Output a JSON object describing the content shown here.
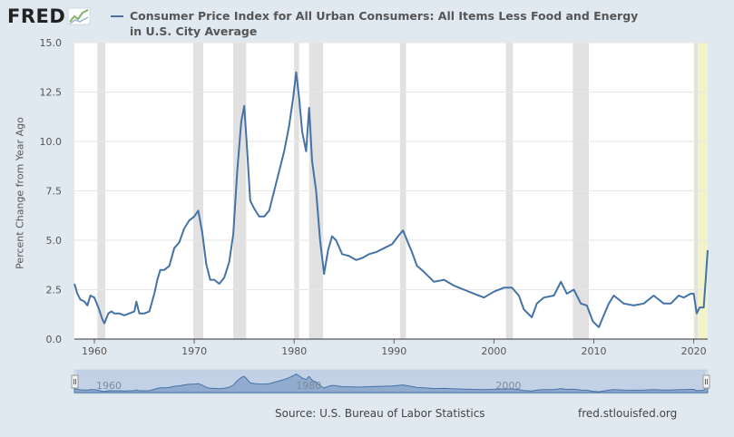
{
  "logo": {
    "text": "FRED",
    "icon": "fred-trend-icon"
  },
  "chart_data": {
    "type": "line",
    "title_line1": "Consumer Price Index for All Urban Consumers: All Items Less Food and Energy",
    "title_line2": "in U.S. City Average",
    "ylabel": "Percent Change from Year Ago",
    "xlabel": "",
    "ylim": [
      0,
      15
    ],
    "xlim": [
      1958,
      2021.4
    ],
    "yticks": [
      "0.0",
      "2.5",
      "5.0",
      "7.5",
      "10.0",
      "12.5",
      "15.0"
    ],
    "xticks": [
      "1960",
      "1970",
      "1980",
      "1990",
      "2000",
      "2010",
      "2020"
    ],
    "navigator_labels": [
      "1960",
      "1980",
      "2000"
    ],
    "grid": "horizontal",
    "line_color": "#4572a7",
    "recession_color": "#e1e1e1",
    "highlight_color": "#f2f3c8",
    "recessions": [
      [
        1960.3,
        1961.1
      ],
      [
        1969.9,
        1970.9
      ],
      [
        1973.9,
        1975.2
      ],
      [
        1980.0,
        1980.5
      ],
      [
        1981.5,
        1982.9
      ],
      [
        1990.6,
        1991.2
      ],
      [
        2001.2,
        2001.9
      ],
      [
        2007.9,
        2009.5
      ],
      [
        2020.1,
        2020.4
      ]
    ],
    "highlight": [
      2020.0,
      2021.4
    ],
    "series": [
      {
        "name": "Consumer Price Index for All Urban Consumers: All Items Less Food and Energy in U.S. City Average",
        "x": [
          1958.0,
          1958.3,
          1958.6,
          1959.0,
          1959.3,
          1959.6,
          1960.0,
          1960.4,
          1960.8,
          1961.0,
          1961.4,
          1961.7,
          1962.0,
          1962.5,
          1963.0,
          1963.5,
          1964.0,
          1964.2,
          1964.5,
          1965.0,
          1965.5,
          1966.0,
          1966.3,
          1966.6,
          1967.0,
          1967.5,
          1968.0,
          1968.5,
          1969.0,
          1969.5,
          1970.0,
          1970.4,
          1970.8,
          1971.2,
          1971.6,
          1972.0,
          1972.5,
          1973.0,
          1973.5,
          1973.9,
          1974.3,
          1974.7,
          1975.0,
          1975.3,
          1975.6,
          1976.0,
          1976.5,
          1977.0,
          1977.5,
          1978.0,
          1978.5,
          1979.0,
          1979.5,
          1979.9,
          1980.2,
          1980.5,
          1980.8,
          1981.2,
          1981.5,
          1981.8,
          1982.2,
          1982.6,
          1983.0,
          1983.4,
          1983.8,
          1984.2,
          1984.8,
          1985.5,
          1986.2,
          1986.8,
          1987.5,
          1988.2,
          1989.0,
          1989.8,
          1990.4,
          1990.9,
          1991.3,
          1991.8,
          1992.3,
          1993.0,
          1994.0,
          1995.0,
          1996.0,
          1997.0,
          1998.0,
          1999.0,
          2000.0,
          2001.0,
          2001.8,
          2002.5,
          2003.0,
          2003.8,
          2004.3,
          2005.0,
          2006.0,
          2006.7,
          2007.3,
          2008.0,
          2008.7,
          2009.3,
          2009.9,
          2010.5,
          2011.0,
          2011.5,
          2012.0,
          2013.0,
          2014.0,
          2015.0,
          2016.0,
          2017.0,
          2017.7,
          2018.5,
          2019.0,
          2019.7,
          2020.0,
          2020.3,
          2020.6,
          2021.0,
          2021.2,
          2021.4
        ],
        "values": [
          2.8,
          2.3,
          2.0,
          1.9,
          1.7,
          2.2,
          2.1,
          1.6,
          1.0,
          0.8,
          1.3,
          1.4,
          1.3,
          1.3,
          1.2,
          1.3,
          1.4,
          1.9,
          1.3,
          1.3,
          1.4,
          2.3,
          3.0,
          3.5,
          3.5,
          3.7,
          4.6,
          4.9,
          5.6,
          6.0,
          6.2,
          6.5,
          5.4,
          3.8,
          3.0,
          3.0,
          2.8,
          3.1,
          3.9,
          5.3,
          8.5,
          11.0,
          11.8,
          9.5,
          7.0,
          6.6,
          6.2,
          6.2,
          6.5,
          7.5,
          8.5,
          9.5,
          10.8,
          12.2,
          13.5,
          12.2,
          10.5,
          9.5,
          11.7,
          9.0,
          7.5,
          5.0,
          3.3,
          4.5,
          5.2,
          5.0,
          4.3,
          4.2,
          4.0,
          4.1,
          4.3,
          4.4,
          4.6,
          4.8,
          5.2,
          5.5,
          5.0,
          4.4,
          3.7,
          3.4,
          2.9,
          3.0,
          2.7,
          2.5,
          2.3,
          2.1,
          2.4,
          2.6,
          2.6,
          2.2,
          1.5,
          1.1,
          1.8,
          2.1,
          2.2,
          2.9,
          2.3,
          2.5,
          1.8,
          1.7,
          0.9,
          0.6,
          1.2,
          1.8,
          2.2,
          1.8,
          1.7,
          1.8,
          2.2,
          1.8,
          1.8,
          2.2,
          2.1,
          2.3,
          2.3,
          1.3,
          1.6,
          1.6,
          3.0,
          4.5
        ]
      }
    ]
  },
  "footer": {
    "source": "Source: U.S. Bureau of Labor Statistics",
    "url": "fred.stlouisfed.org"
  }
}
